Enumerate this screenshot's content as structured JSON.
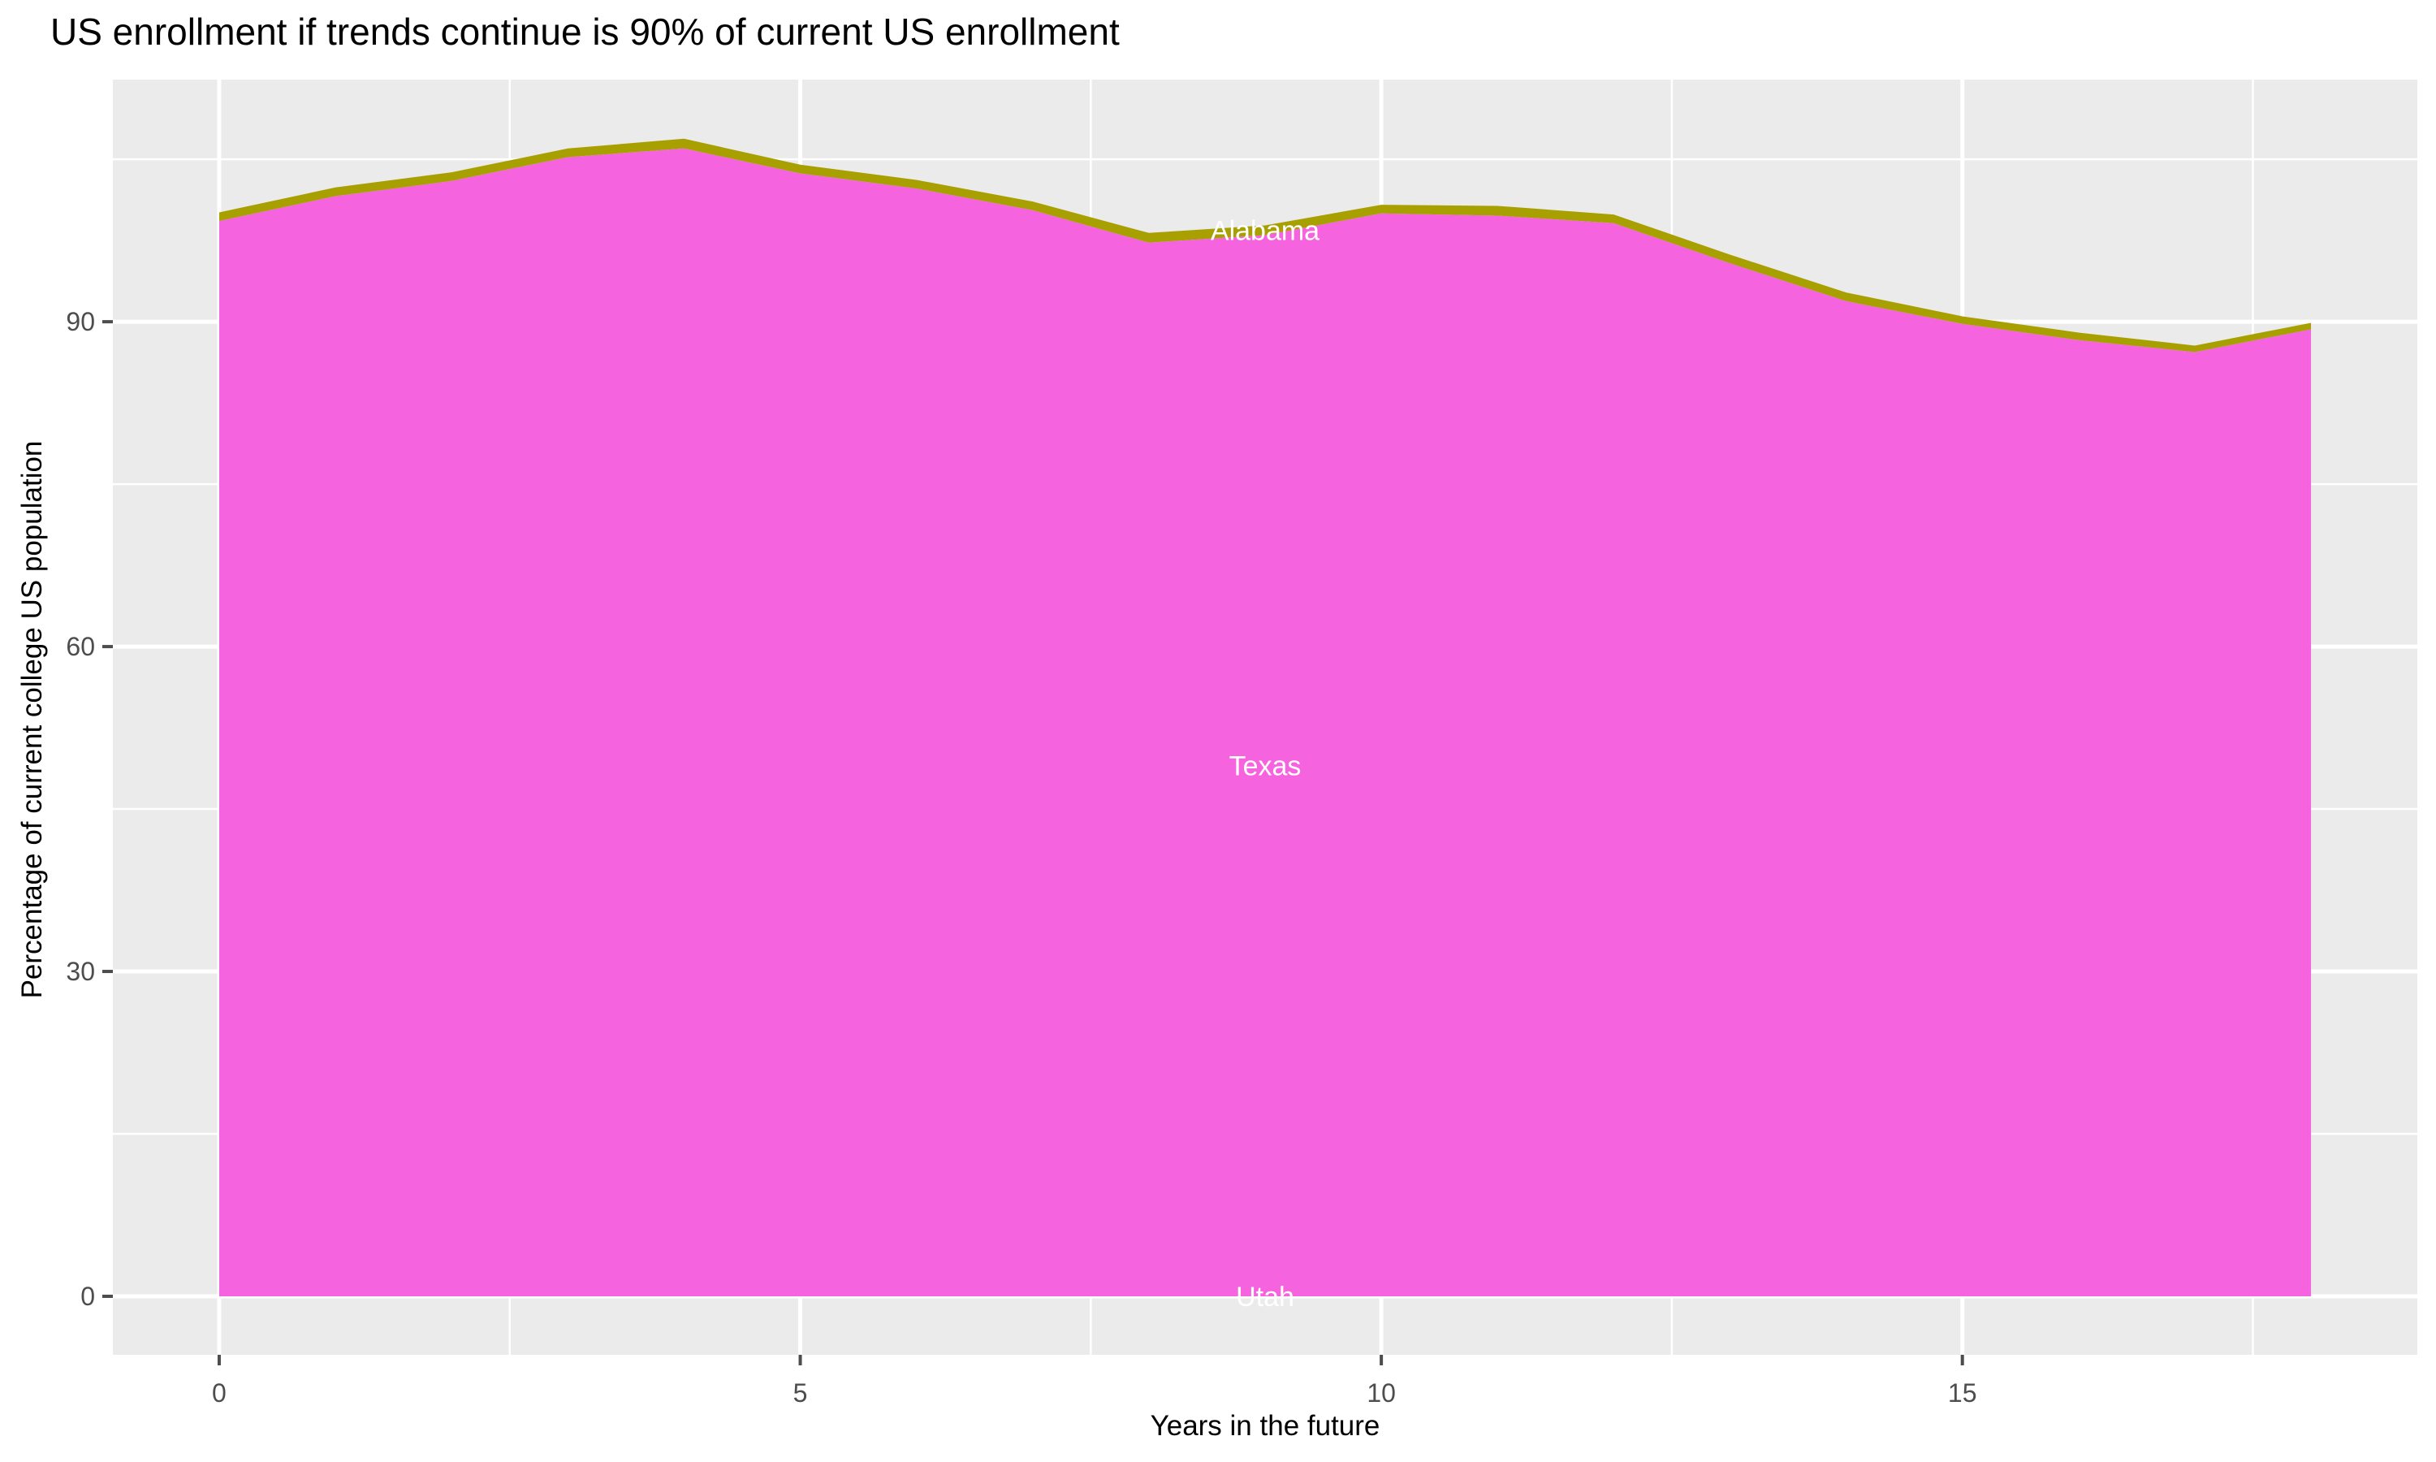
{
  "title": "US enrollment if trends continue is 90% of current US enrollment",
  "chart_data": {
    "type": "area",
    "stacked": true,
    "title": "US enrollment if trends continue is 90% of current US enrollment",
    "xlabel": "Years in the future",
    "ylabel": "Percentage of current college US population",
    "x": [
      0,
      1,
      2,
      3,
      4,
      5,
      6,
      7,
      8,
      9,
      10,
      11,
      12,
      13,
      14,
      15,
      16,
      17,
      18
    ],
    "series": [
      {
        "name": "Utah",
        "color": null,
        "values": [
          0,
          0,
          0,
          0,
          0,
          0,
          0,
          0,
          0,
          0,
          0,
          0,
          0,
          0,
          0,
          0,
          0,
          0,
          0
        ]
      },
      {
        "name": "Texas",
        "color": "#F564DE",
        "values": [
          99.3,
          101.6,
          103.0,
          105.2,
          106.0,
          103.7,
          102.3,
          100.3,
          97.3,
          98.0,
          100.0,
          99.8,
          99.1,
          95.4,
          91.9,
          89.8,
          88.3,
          87.2,
          89.3
        ]
      },
      {
        "name": "Alabama",
        "color": "#A8A000",
        "values": [
          0.8,
          0.8,
          0.8,
          0.8,
          0.9,
          0.8,
          0.8,
          0.8,
          0.9,
          0.9,
          0.8,
          0.9,
          0.8,
          0.8,
          0.8,
          0.7,
          0.7,
          0.6,
          0.6
        ]
      }
    ],
    "label_x": 9,
    "label_color": "#FFFFFF",
    "x_ticks": [
      0,
      5,
      10,
      15
    ],
    "x_minor": [
      2.5,
      7.5,
      12.5,
      17.5
    ],
    "y_ticks": [
      0,
      30,
      60,
      90
    ],
    "y_minor": [
      15,
      45,
      75,
      105
    ],
    "xlim": [
      -0.915,
      18.915
    ],
    "ylim": [
      -5.4,
      112.36
    ],
    "panel_bg": "#EBEBEB",
    "grid_color": "#FFFFFF",
    "tick_color": "#4D4D4D",
    "tick_label_color": "#4D4D4D",
    "legend": "none"
  }
}
